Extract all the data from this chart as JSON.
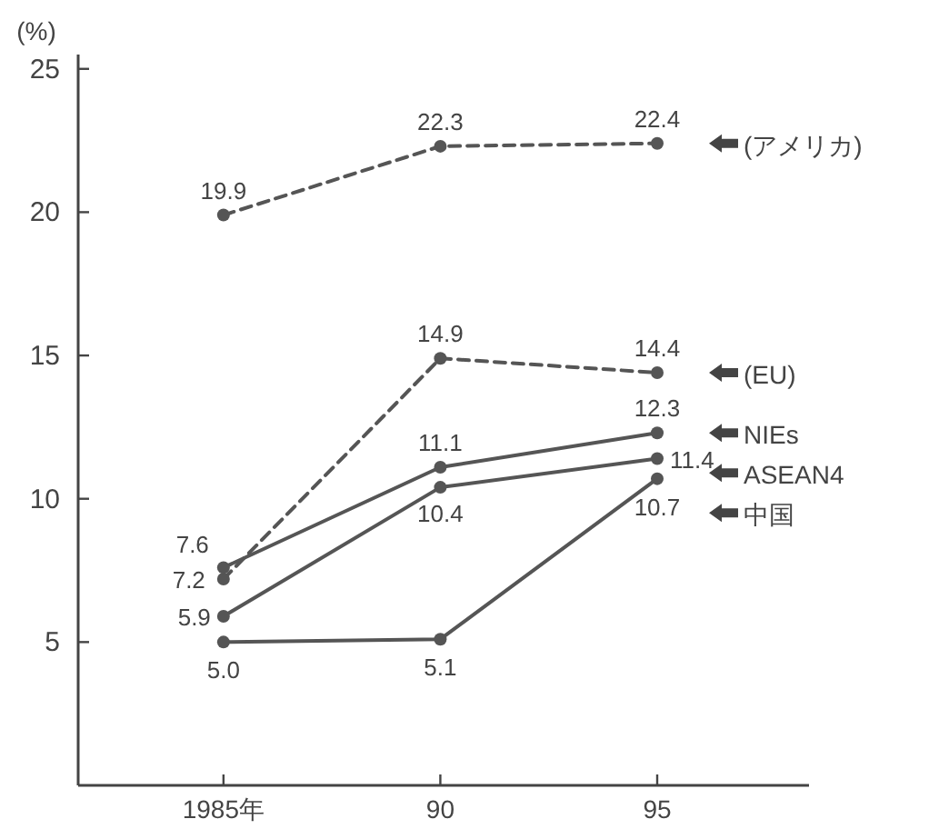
{
  "chart_data": {
    "type": "line",
    "ylabel": "(%)",
    "categories": [
      "1985年",
      "90",
      "95"
    ],
    "ylim": [
      0,
      25.5
    ],
    "yticks": [
      5,
      10,
      15,
      20,
      25
    ],
    "marker": "circle",
    "data_labels": true,
    "grid": false,
    "series": [
      {
        "name": "(アメリカ)",
        "color": "#555555",
        "line_style": "dashed",
        "values": [
          19.9,
          22.3,
          22.4
        ]
      },
      {
        "name": "(EU)",
        "color": "#555555",
        "line_style": "dashed",
        "values": [
          7.2,
          14.9,
          14.4
        ]
      },
      {
        "name": "NIEs",
        "color": "#555555",
        "line_style": "solid",
        "values": [
          7.6,
          11.1,
          12.3
        ]
      },
      {
        "name": "ASEAN4",
        "color": "#555555",
        "line_style": "solid",
        "values": [
          5.9,
          10.4,
          11.4
        ]
      },
      {
        "name": "中国",
        "color": "#555555",
        "line_style": "solid",
        "values": [
          5.0,
          5.1,
          10.7
        ],
        "value_labels": [
          "5.0",
          "5.1",
          "10.7"
        ]
      }
    ]
  }
}
